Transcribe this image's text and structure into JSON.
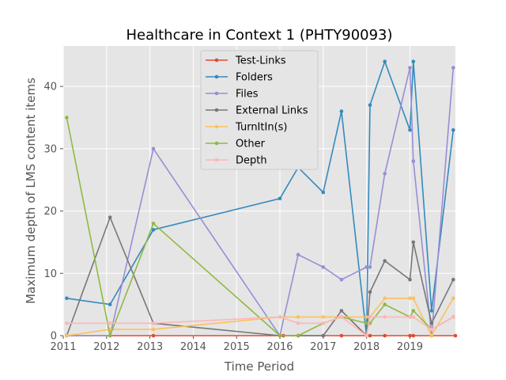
{
  "chart_data": {
    "type": "line",
    "title": "Healthcare in Context 1 (PHTY90093)",
    "xlabel": "Time Period",
    "ylabel": "Maximum depth of LMS content items",
    "xlim": [
      2011.0,
      2020.05
    ],
    "ylim": [
      0,
      46.5
    ],
    "xticks": [
      2011,
      2012,
      2013,
      2014,
      2015,
      2016,
      2017,
      2018,
      2019
    ],
    "yticks": [
      0,
      10,
      20,
      30,
      40
    ],
    "grid": true,
    "legend_position": "top-center",
    "background_color": "#E5E5E5",
    "grid_color": "#FFFFFF",
    "series": [
      {
        "name": "Test-Links",
        "color": "#E24A33",
        "points": [
          [
            2011.08,
            0
          ],
          [
            2012.08,
            0
          ],
          [
            2013.08,
            0
          ],
          [
            2016.08,
            0
          ],
          [
            2016.42,
            0
          ],
          [
            2017.0,
            0
          ],
          [
            2017.42,
            0
          ],
          [
            2018.0,
            0
          ],
          [
            2018.08,
            0
          ],
          [
            2018.42,
            0
          ],
          [
            2019.0,
            0
          ],
          [
            2019.08,
            0
          ],
          [
            2019.5,
            0
          ],
          [
            2020.05,
            0
          ]
        ]
      },
      {
        "name": "Folders",
        "color": "#348ABD",
        "points": [
          [
            2011.08,
            6
          ],
          [
            2012.08,
            5
          ],
          [
            2013.08,
            17
          ],
          [
            2016.0,
            22
          ],
          [
            2016.42,
            27
          ],
          [
            2017.0,
            23
          ],
          [
            2017.42,
            36
          ],
          [
            2018.0,
            0
          ],
          [
            2018.08,
            37
          ],
          [
            2018.42,
            44
          ],
          [
            2019.0,
            33
          ],
          [
            2019.08,
            44
          ],
          [
            2019.5,
            4
          ],
          [
            2020.0,
            33
          ]
        ]
      },
      {
        "name": "Files",
        "color": "#988ED5",
        "points": [
          [
            2011.08,
            0
          ],
          [
            2012.08,
            0
          ],
          [
            2013.08,
            30
          ],
          [
            2016.0,
            0
          ],
          [
            2016.42,
            13
          ],
          [
            2017.0,
            11
          ],
          [
            2017.42,
            9
          ],
          [
            2018.0,
            11
          ],
          [
            2018.08,
            11
          ],
          [
            2018.42,
            26
          ],
          [
            2019.0,
            43
          ],
          [
            2019.08,
            28
          ],
          [
            2019.5,
            0
          ],
          [
            2020.0,
            43
          ]
        ]
      },
      {
        "name": "External Links",
        "color": "#777777",
        "points": [
          [
            2011.08,
            0
          ],
          [
            2012.08,
            19
          ],
          [
            2013.08,
            2
          ],
          [
            2016.0,
            0
          ],
          [
            2016.42,
            0
          ],
          [
            2017.0,
            0
          ],
          [
            2017.42,
            4
          ],
          [
            2018.0,
            0
          ],
          [
            2018.08,
            7
          ],
          [
            2018.42,
            12
          ],
          [
            2019.0,
            9
          ],
          [
            2019.08,
            15
          ],
          [
            2019.5,
            2
          ],
          [
            2020.0,
            9
          ]
        ]
      },
      {
        "name": "TurnItIn(s)",
        "color": "#FBC15E",
        "points": [
          [
            2011.08,
            0
          ],
          [
            2012.08,
            1
          ],
          [
            2013.08,
            1
          ],
          [
            2016.0,
            3
          ],
          [
            2016.42,
            3
          ],
          [
            2017.0,
            3
          ],
          [
            2017.42,
            3
          ],
          [
            2018.0,
            3
          ],
          [
            2018.08,
            3
          ],
          [
            2018.42,
            6
          ],
          [
            2019.0,
            6
          ],
          [
            2019.08,
            6
          ],
          [
            2019.5,
            0
          ],
          [
            2020.0,
            6
          ]
        ]
      },
      {
        "name": "Other",
        "color": "#8EBA42",
        "points": [
          [
            2011.08,
            35
          ],
          [
            2012.08,
            0
          ],
          [
            2013.08,
            18
          ],
          [
            2016.0,
            0
          ],
          [
            2016.42,
            0
          ],
          [
            2017.0,
            2
          ],
          [
            2017.42,
            3
          ],
          [
            2018.0,
            2
          ],
          [
            2018.08,
            2
          ],
          [
            2018.42,
            5
          ],
          [
            2019.0,
            3
          ],
          [
            2019.08,
            4
          ],
          [
            2019.5,
            1
          ],
          [
            2020.0,
            3
          ]
        ]
      },
      {
        "name": "Depth",
        "color": "#FFB5B8",
        "points": [
          [
            2011.08,
            2
          ],
          [
            2012.08,
            2
          ],
          [
            2013.08,
            2
          ],
          [
            2016.0,
            3
          ],
          [
            2016.42,
            2
          ],
          [
            2017.0,
            2
          ],
          [
            2017.42,
            3
          ],
          [
            2018.0,
            0
          ],
          [
            2018.08,
            3
          ],
          [
            2018.42,
            3
          ],
          [
            2019.0,
            3
          ],
          [
            2019.08,
            3
          ],
          [
            2019.5,
            1
          ],
          [
            2020.0,
            3
          ]
        ]
      }
    ]
  }
}
